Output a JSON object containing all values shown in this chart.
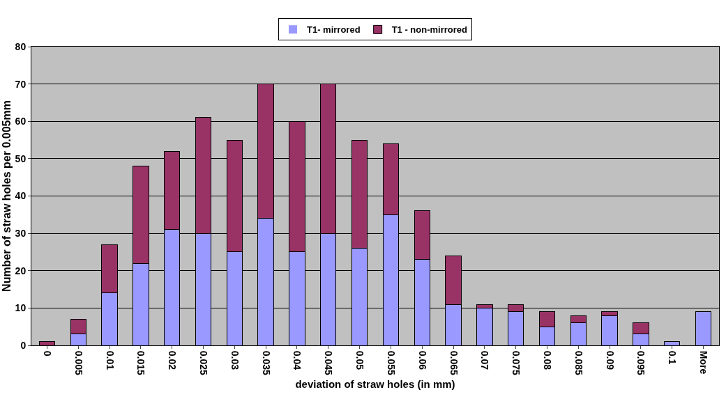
{
  "chart_data": {
    "type": "bar",
    "stacked": true,
    "xlabel": "deviation of straw holes (in mm)",
    "ylabel": "Number of straw holes per 0.005mm",
    "categories": [
      "0",
      "0.005",
      "0.01",
      "0.015",
      "0.02",
      "0.025",
      "0.03",
      "0.035",
      "0.04",
      "0.045",
      "0.05",
      "0.055",
      "0.06",
      "0.065",
      "0.07",
      "0.075",
      "0.08",
      "0.085",
      "0.09",
      "0.095",
      "0.1",
      "More"
    ],
    "series": [
      {
        "name": "T1- mirrored",
        "color": "#9999ff",
        "values": [
          0,
          3,
          14,
          22,
          31,
          30,
          25,
          34,
          25,
          30,
          26,
          35,
          23,
          11,
          10,
          9,
          5,
          6,
          8,
          3,
          1,
          9
        ]
      },
      {
        "name": "T1 - non-mirrored",
        "color": "#993366",
        "values": [
          1,
          4,
          13,
          26,
          21,
          31,
          30,
          36,
          35,
          40,
          29,
          19,
          13,
          13,
          1,
          2,
          4,
          2,
          1,
          3,
          0,
          0
        ]
      }
    ],
    "ylim": [
      0,
      80
    ],
    "yticks": [
      0,
      10,
      20,
      30,
      40,
      50,
      60,
      70,
      80
    ],
    "grid": "y",
    "legend": "top"
  }
}
